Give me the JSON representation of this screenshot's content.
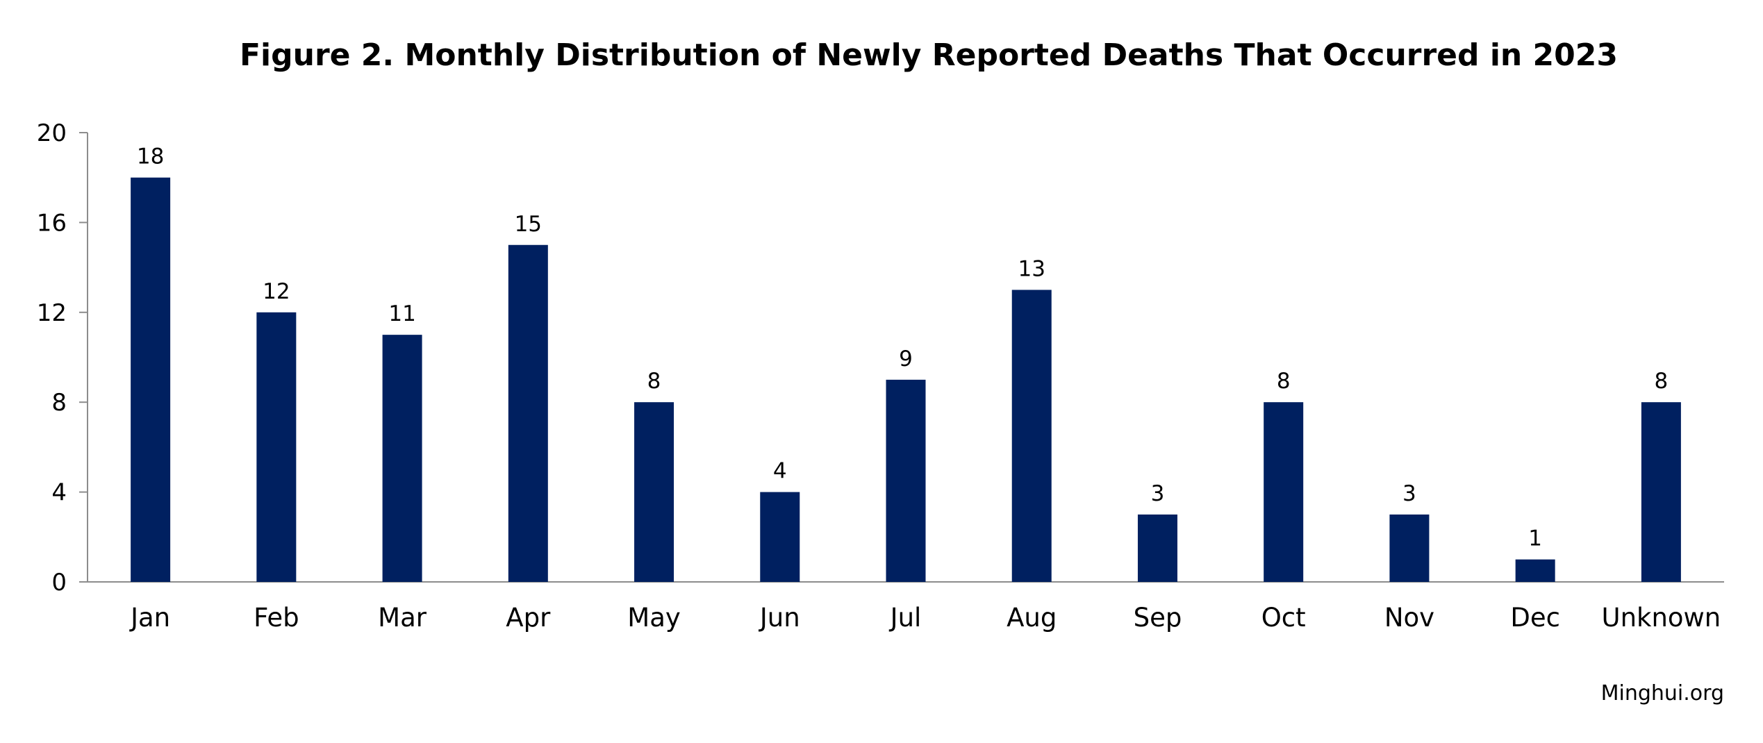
{
  "chart_data": {
    "type": "bar",
    "title": "Figure 2. Monthly Distribution of Newly Reported Deaths That Occurred in 2023",
    "xlabel": "",
    "ylabel": "",
    "categories": [
      "Jan",
      "Feb",
      "Mar",
      "Apr",
      "May",
      "Jun",
      "Jul",
      "Aug",
      "Sep",
      "Oct",
      "Nov",
      "Dec",
      "Unknown"
    ],
    "values": [
      18,
      12,
      11,
      15,
      8,
      4,
      9,
      13,
      3,
      8,
      3,
      1,
      8
    ],
    "ylim": [
      0,
      20
    ],
    "yticks": [
      0,
      4,
      8,
      12,
      16,
      20
    ],
    "grid": false,
    "legend": "none",
    "bar_color": "#002060",
    "axis_color": "#8c8c8c",
    "source": "Minghui.org"
  }
}
